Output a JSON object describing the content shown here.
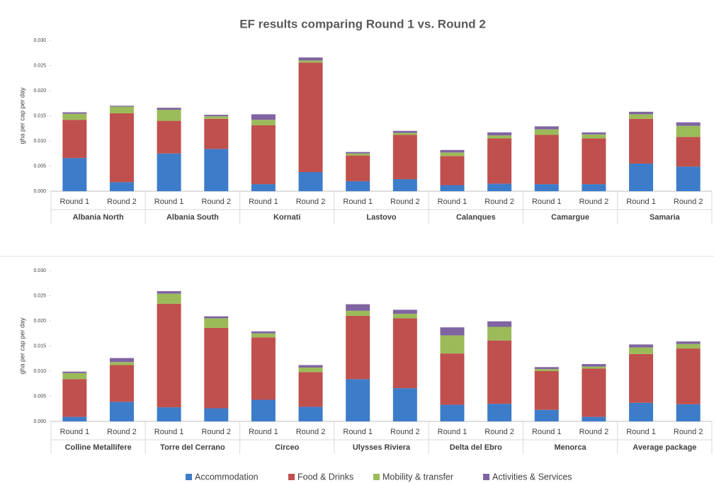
{
  "chart_data": [
    {
      "type": "bar",
      "stacked": true,
      "title": "EF results comparing Round 1 vs. Round 2",
      "ylabel": "gha per cap per day",
      "categories": [
        "Round 1",
        "Round 2",
        "Round 1",
        "Round 2",
        "Round 1",
        "Round 2",
        "Round 1",
        "Round 2",
        "Round 1",
        "Round 2",
        "Round 1",
        "Round 2",
        "Round 1",
        "Round 2"
      ],
      "groups": [
        "Albania North",
        "Albania South",
        "Kornati",
        "Lastovo",
        "Calanques",
        "Camargue",
        "Samaria"
      ],
      "ylim": [
        0,
        0.03
      ],
      "yticks": [
        {
          "value": 0,
          "label": "0.000"
        },
        {
          "value": 0.005,
          "label": "0.005"
        },
        {
          "value": 0.01,
          "label": "0.010"
        },
        {
          "value": 0.015,
          "label": "0.015"
        },
        {
          "value": 0.02,
          "label": "0.020"
        },
        {
          "value": 0.025,
          "label": "0.025"
        },
        {
          "value": 0.03,
          "label": "0.030"
        }
      ],
      "grid": false,
      "series": [
        {
          "values": [
            0.0066,
            0.0018,
            0.0075,
            0.0084,
            0.0014,
            0.0038,
            0.002,
            0.0024,
            0.0012,
            0.0015,
            0.0014,
            0.0014,
            0.0055,
            0.0049
          ]
        },
        {
          "values": [
            0.0076,
            0.0137,
            0.0065,
            0.006,
            0.0117,
            0.0218,
            0.0051,
            0.0088,
            0.0058,
            0.009,
            0.0098,
            0.0091,
            0.0089,
            0.0059
          ]
        },
        {
          "values": [
            0.0012,
            0.0013,
            0.0022,
            0.0005,
            0.0011,
            0.0004,
            0.0004,
            0.0004,
            0.0007,
            0.0006,
            0.0011,
            0.0008,
            0.0009,
            0.0022
          ]
        },
        {
          "values": [
            0.0003,
            0.0002,
            0.0004,
            0.0003,
            0.0011,
            0.0006,
            0.0003,
            0.0004,
            0.0005,
            0.0006,
            0.0006,
            0.0004,
            0.0005,
            0.0007
          ]
        }
      ]
    },
    {
      "type": "bar",
      "stacked": true,
      "ylabel": "gha per cap per day",
      "categories": [
        "Round 1",
        "Round 2",
        "Round 1",
        "Round 2",
        "Round 1",
        "Round 2",
        "Round 1",
        "Round 2",
        "Round 1",
        "Round 2",
        "Round 1",
        "Round 2",
        "Round 1",
        "Round 2"
      ],
      "groups": [
        "Colline Metallifere",
        "Torre del Cerrano",
        "Circeo",
        "Ulysses Riviera",
        "Delta del Ebro",
        "Menorca",
        "Average package"
      ],
      "ylim": [
        0,
        0.03
      ],
      "yticks": [
        {
          "value": 0,
          "label": "0.000"
        },
        {
          "value": 0.005,
          "label": "0.005"
        },
        {
          "value": 0.01,
          "label": "0.010"
        },
        {
          "value": 0.015,
          "label": "0.015"
        },
        {
          "value": 0.02,
          "label": "0.020"
        },
        {
          "value": 0.025,
          "label": "0.025"
        },
        {
          "value": 0.03,
          "label": "0.030"
        }
      ],
      "grid": false,
      "legend": "bottom",
      "series": [
        {
          "name": "Accommodation",
          "color": "#3d7cc9",
          "values": [
            0.0009,
            0.0039,
            0.0028,
            0.0026,
            0.0043,
            0.0029,
            0.0084,
            0.0066,
            0.0033,
            0.0035,
            0.0023,
            0.0009,
            0.0037,
            0.0034
          ]
        },
        {
          "name": "Food & Drinks",
          "color": "#c0504d",
          "values": [
            0.0075,
            0.0073,
            0.0206,
            0.016,
            0.0124,
            0.0069,
            0.0126,
            0.0139,
            0.0102,
            0.0126,
            0.0077,
            0.0096,
            0.0097,
            0.0111
          ]
        },
        {
          "name": "Mobility & transfer",
          "color": "#9bbb59",
          "values": [
            0.0012,
            0.0006,
            0.002,
            0.0019,
            0.0008,
            0.0009,
            0.001,
            0.0009,
            0.0036,
            0.0027,
            0.0004,
            0.0004,
            0.0013,
            0.0009
          ]
        },
        {
          "name": "Activities & Services",
          "color": "#8064a2",
          "values": [
            0.0003,
            0.0008,
            0.0005,
            0.0004,
            0.0004,
            0.0005,
            0.0013,
            0.0008,
            0.0016,
            0.0011,
            0.0004,
            0.0005,
            0.0006,
            0.0005
          ]
        }
      ]
    }
  ]
}
